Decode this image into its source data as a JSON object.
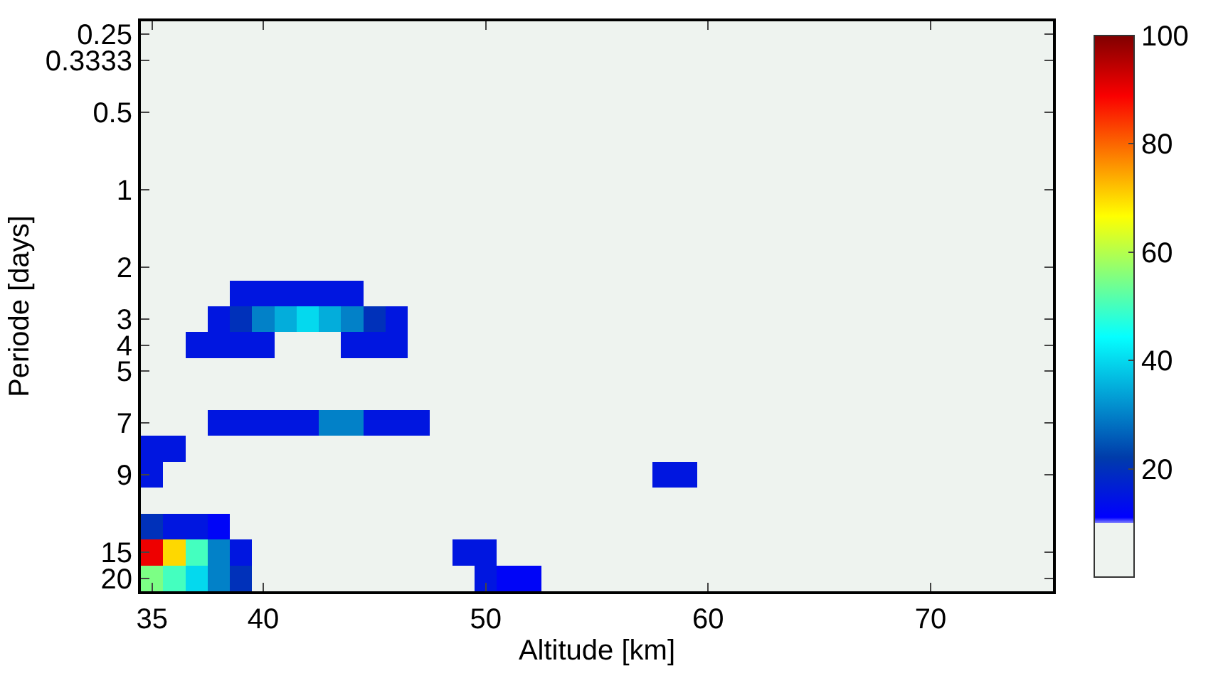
{
  "chart_data": {
    "type": "heatmap",
    "xlabel": "Altitude [km]",
    "ylabel": "Periode [days]",
    "categories": [
      "35",
      null,
      null,
      null,
      null,
      "40",
      null,
      null,
      null,
      null,
      null,
      null,
      null,
      null,
      null,
      "50",
      null,
      null,
      null,
      null,
      null,
      null,
      null,
      null,
      null,
      "60",
      null,
      null,
      null,
      null,
      null,
      null,
      null,
      null,
      null,
      "70",
      null,
      null,
      null,
      null,
      null
    ],
    "y_categories": [
      "0.25",
      "0.3333",
      null,
      "0.5",
      null,
      null,
      "1",
      null,
      null,
      "2",
      null,
      "3",
      "4",
      "5",
      null,
      "7",
      null,
      "9",
      null,
      null,
      "15",
      "20"
    ],
    "cells": [
      [
        0,
        0,
        0,
        0,
        0,
        0,
        0,
        0,
        0,
        0,
        0,
        0,
        0,
        0,
        0,
        0,
        0,
        0,
        0,
        0,
        0,
        0,
        0,
        0,
        0,
        0,
        0,
        0,
        0,
        0,
        0,
        0,
        0,
        0,
        0,
        0,
        0,
        0,
        0,
        0,
        0
      ],
      [
        0,
        0,
        0,
        0,
        0,
        0,
        0,
        0,
        0,
        0,
        0,
        0,
        0,
        0,
        0,
        0,
        0,
        0,
        0,
        0,
        0,
        0,
        0,
        0,
        0,
        0,
        0,
        0,
        0,
        0,
        0,
        0,
        0,
        0,
        0,
        0,
        0,
        0,
        0,
        0,
        0
      ],
      [
        0,
        0,
        0,
        0,
        0,
        0,
        0,
        0,
        0,
        0,
        0,
        0,
        0,
        0,
        0,
        0,
        0,
        0,
        0,
        0,
        0,
        0,
        0,
        0,
        0,
        0,
        0,
        0,
        0,
        0,
        0,
        0,
        0,
        0,
        0,
        0,
        0,
        0,
        0,
        0,
        0
      ],
      [
        0,
        0,
        0,
        0,
        0,
        0,
        0,
        0,
        0,
        0,
        0,
        0,
        0,
        0,
        0,
        0,
        0,
        0,
        0,
        0,
        0,
        0,
        0,
        0,
        0,
        0,
        0,
        0,
        0,
        0,
        0,
        0,
        0,
        0,
        0,
        0,
        0,
        0,
        0,
        0,
        0
      ],
      [
        0,
        0,
        0,
        0,
        0,
        0,
        0,
        0,
        0,
        0,
        0,
        0,
        0,
        0,
        0,
        0,
        0,
        0,
        0,
        0,
        0,
        0,
        0,
        0,
        0,
        0,
        0,
        0,
        0,
        0,
        0,
        0,
        0,
        0,
        0,
        0,
        0,
        0,
        0,
        0,
        0
      ],
      [
        0,
        0,
        0,
        0,
        0,
        0,
        0,
        0,
        0,
        0,
        0,
        0,
        0,
        0,
        0,
        0,
        0,
        0,
        0,
        0,
        0,
        0,
        0,
        0,
        0,
        0,
        0,
        0,
        0,
        0,
        0,
        0,
        0,
        0,
        0,
        0,
        0,
        0,
        0,
        0,
        0
      ],
      [
        0,
        0,
        0,
        0,
        0,
        0,
        0,
        0,
        0,
        0,
        0,
        0,
        0,
        0,
        0,
        0,
        0,
        0,
        0,
        0,
        0,
        0,
        0,
        0,
        0,
        0,
        0,
        0,
        0,
        0,
        0,
        0,
        0,
        0,
        0,
        0,
        0,
        0,
        0,
        0,
        0
      ],
      [
        0,
        0,
        0,
        0,
        0,
        0,
        0,
        0,
        0,
        0,
        0,
        0,
        0,
        0,
        0,
        0,
        0,
        0,
        0,
        0,
        0,
        0,
        0,
        0,
        0,
        0,
        0,
        0,
        0,
        0,
        0,
        0,
        0,
        0,
        0,
        0,
        0,
        0,
        0,
        0,
        0
      ],
      [
        0,
        0,
        0,
        0,
        0,
        0,
        0,
        0,
        0,
        0,
        0,
        0,
        0,
        0,
        0,
        0,
        0,
        0,
        0,
        0,
        0,
        0,
        0,
        0,
        0,
        0,
        0,
        0,
        0,
        0,
        0,
        0,
        0,
        0,
        0,
        0,
        0,
        0,
        0,
        0,
        0
      ],
      [
        0,
        0,
        0,
        0,
        0,
        0,
        0,
        0,
        0,
        0,
        0,
        0,
        0,
        0,
        0,
        0,
        0,
        0,
        0,
        0,
        0,
        0,
        0,
        0,
        0,
        0,
        0,
        0,
        0,
        0,
        0,
        0,
        0,
        0,
        0,
        0,
        0,
        0,
        0,
        0,
        0
      ],
      [
        0,
        0,
        0,
        0,
        15,
        15,
        15,
        15,
        15,
        15,
        0,
        0,
        0,
        0,
        0,
        0,
        0,
        0,
        0,
        0,
        0,
        0,
        0,
        0,
        0,
        0,
        0,
        0,
        0,
        0,
        0,
        0,
        0,
        0,
        0,
        0,
        0,
        0,
        0,
        0,
        0
      ],
      [
        0,
        0,
        0,
        15,
        20,
        30,
        35,
        40,
        35,
        30,
        20,
        15,
        0,
        0,
        0,
        0,
        0,
        0,
        0,
        0,
        0,
        0,
        0,
        0,
        0,
        0,
        0,
        0,
        0,
        0,
        0,
        0,
        0,
        0,
        0,
        0,
        0,
        0,
        0,
        0,
        0
      ],
      [
        0,
        0,
        15,
        15,
        15,
        15,
        0,
        0,
        0,
        15,
        15,
        15,
        0,
        0,
        0,
        0,
        0,
        0,
        0,
        0,
        0,
        0,
        0,
        0,
        0,
        0,
        0,
        0,
        0,
        0,
        0,
        0,
        0,
        0,
        0,
        0,
        0,
        0,
        0,
        0,
        0
      ],
      [
        0,
        0,
        0,
        0,
        0,
        0,
        0,
        0,
        0,
        0,
        0,
        0,
        0,
        0,
        0,
        0,
        0,
        0,
        0,
        0,
        0,
        0,
        0,
        0,
        0,
        0,
        0,
        0,
        0,
        0,
        0,
        0,
        0,
        0,
        0,
        0,
        0,
        0,
        0,
        0,
        0
      ],
      [
        0,
        0,
        0,
        0,
        0,
        0,
        0,
        0,
        0,
        0,
        0,
        0,
        0,
        0,
        0,
        0,
        0,
        0,
        0,
        0,
        0,
        0,
        0,
        0,
        0,
        0,
        0,
        0,
        0,
        0,
        0,
        0,
        0,
        0,
        0,
        0,
        0,
        0,
        0,
        0,
        0
      ],
      [
        0,
        0,
        0,
        15,
        15,
        15,
        15,
        15,
        30,
        30,
        15,
        15,
        15,
        0,
        0,
        0,
        0,
        0,
        0,
        0,
        0,
        0,
        0,
        0,
        0,
        0,
        0,
        0,
        0,
        0,
        0,
        0,
        0,
        0,
        0,
        0,
        0,
        0,
        0,
        0,
        0
      ],
      [
        15,
        15,
        0,
        0,
        0,
        0,
        0,
        0,
        0,
        0,
        0,
        0,
        0,
        0,
        0,
        0,
        0,
        0,
        0,
        0,
        0,
        0,
        0,
        0,
        0,
        0,
        0,
        0,
        0,
        0,
        0,
        0,
        0,
        0,
        0,
        0,
        0,
        0,
        0,
        0,
        0
      ],
      [
        15,
        0,
        0,
        0,
        0,
        0,
        0,
        0,
        0,
        0,
        0,
        0,
        0,
        0,
        0,
        0,
        0,
        0,
        0,
        0,
        0,
        0,
        0,
        15,
        15,
        0,
        0,
        0,
        0,
        0,
        0,
        0,
        0,
        0,
        0,
        0,
        0,
        0,
        0,
        0,
        0
      ],
      [
        0,
        0,
        0,
        0,
        0,
        0,
        0,
        0,
        0,
        0,
        0,
        0,
        0,
        0,
        0,
        0,
        0,
        0,
        0,
        0,
        0,
        0,
        0,
        0,
        0,
        0,
        0,
        0,
        0,
        0,
        0,
        0,
        0,
        0,
        0,
        0,
        0,
        0,
        0,
        0,
        0
      ],
      [
        20,
        15,
        15,
        12,
        0,
        0,
        0,
        0,
        0,
        0,
        0,
        0,
        0,
        0,
        0,
        0,
        0,
        0,
        0,
        0,
        0,
        0,
        0,
        0,
        0,
        0,
        0,
        0,
        0,
        0,
        0,
        0,
        0,
        0,
        0,
        0,
        0,
        0,
        0,
        0,
        0
      ],
      [
        90,
        70,
        50,
        30,
        15,
        0,
        0,
        0,
        0,
        0,
        0,
        0,
        0,
        0,
        15,
        15,
        0,
        0,
        0,
        0,
        0,
        0,
        0,
        0,
        0,
        0,
        0,
        0,
        0,
        0,
        0,
        0,
        0,
        0,
        0,
        0,
        0,
        0,
        0,
        0,
        0
      ],
      [
        55,
        50,
        40,
        30,
        20,
        0,
        0,
        0,
        0,
        0,
        0,
        0,
        0,
        0,
        0,
        15,
        12,
        12,
        0,
        0,
        0,
        0,
        0,
        0,
        0,
        0,
        0,
        0,
        0,
        0,
        0,
        0,
        0,
        0,
        0,
        0,
        0,
        0,
        0,
        0,
        0
      ]
    ],
    "clim": [
      0,
      100
    ],
    "cticks": [
      20,
      40,
      60,
      80,
      100
    ]
  }
}
